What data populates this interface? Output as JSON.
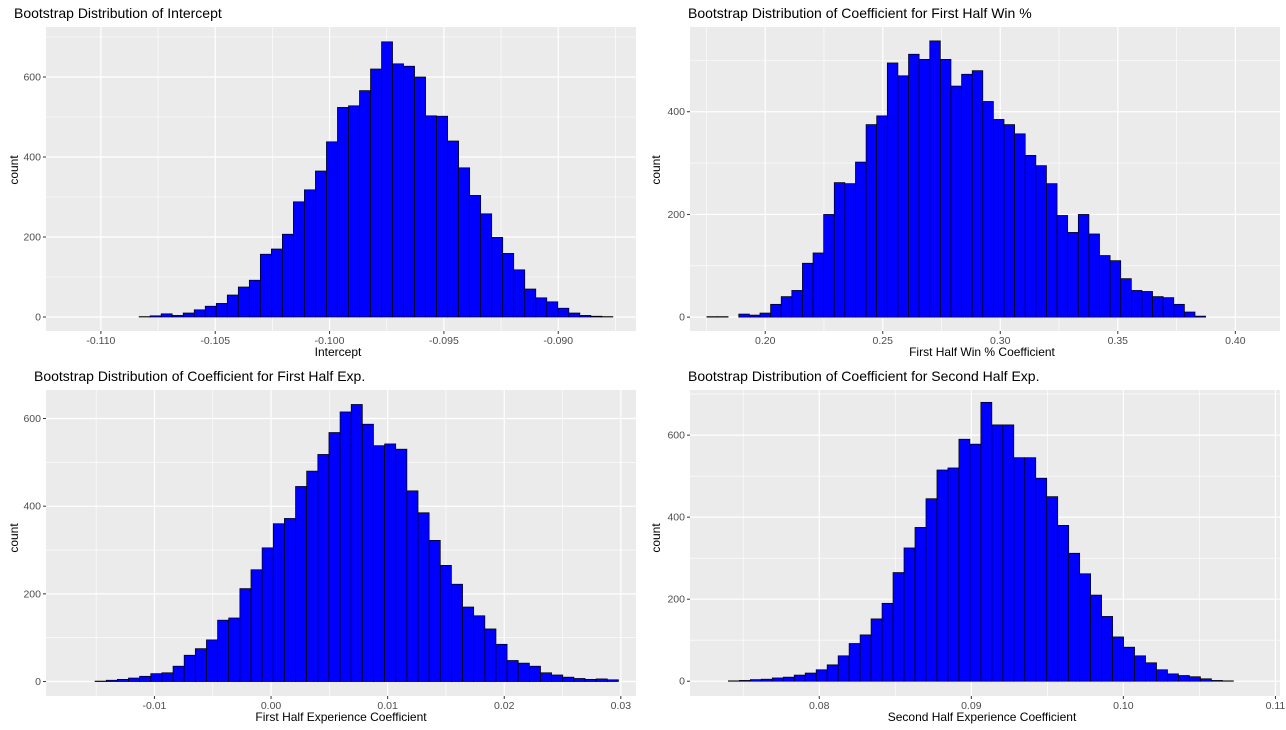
{
  "chart_data": [
    {
      "type": "histogram",
      "title": "Bootstrap Distribution of Intercept",
      "xlabel": "Intercept",
      "ylabel": "count",
      "xlim": [
        -0.1124,
        -0.0866
      ],
      "ylim": [
        -35,
        725
      ],
      "xticks": [
        -0.11,
        -0.105,
        -0.1,
        -0.095,
        -0.09
      ],
      "xtick_labels": [
        "-0.110",
        "-0.105",
        "-0.100",
        "-0.095",
        "-0.090"
      ],
      "yticks": [
        0,
        200,
        400,
        600
      ],
      "ytick_labels": [
        "0",
        "200",
        "400",
        "600"
      ],
      "grid": true,
      "bin_start": -0.1117,
      "bin_width": 0.0004818,
      "fill": "#0000ff",
      "edge": "#000000",
      "counts": [
        0,
        0,
        0,
        0,
        0,
        0,
        0,
        1,
        3,
        8,
        4,
        10,
        18,
        27,
        34,
        55,
        75,
        92,
        157,
        170,
        207,
        288,
        318,
        365,
        438,
        524,
        528,
        566,
        620,
        688,
        633,
        627,
        600,
        503,
        502,
        440,
        373,
        304,
        258,
        199,
        159,
        118,
        70,
        48,
        38,
        22,
        10,
        4,
        2,
        1,
        0,
        0,
        0,
        0
      ]
    },
    {
      "type": "histogram",
      "title": "Bootstrap Distribution of Coefficient for First Half Win %",
      "xlabel": "First Half Win % Coefficient",
      "ylabel": "count",
      "xlim": [
        0.168,
        0.419
      ],
      "ylim": [
        -27,
        565
      ],
      "xticks": [
        0.2,
        0.25,
        0.3,
        0.35,
        0.4
      ],
      "xtick_labels": [
        "0.20",
        "0.25",
        "0.30",
        "0.35",
        "0.40"
      ],
      "yticks": [
        0,
        200,
        400
      ],
      "ytick_labels": [
        "0",
        "200",
        "400"
      ],
      "grid": true,
      "bin_start": 0.1752,
      "bin_width": 0.004514,
      "fill": "#0000ff",
      "edge": "#000000",
      "counts": [
        1,
        1,
        0,
        6,
        4,
        8,
        25,
        40,
        52,
        105,
        125,
        200,
        262,
        260,
        302,
        375,
        392,
        495,
        470,
        512,
        502,
        538,
        502,
        450,
        473,
        480,
        420,
        385,
        375,
        357,
        315,
        295,
        260,
        198,
        165,
        200,
        162,
        120,
        110,
        75,
        52,
        50,
        40,
        38,
        25,
        10,
        2,
        0
      ]
    },
    {
      "type": "histogram",
      "title": "Bootstrap Distribution of Coefficient for First Half Exp.",
      "xlabel": "First Half Experience Coefficient",
      "ylabel": "count",
      "xlim": [
        -0.0193,
        0.0313
      ],
      "ylim": [
        -33,
        665
      ],
      "xticks": [
        -0.01,
        0.0,
        0.01,
        0.02,
        0.03
      ],
      "xtick_labels": [
        "-0.01",
        "0.00",
        "0.01",
        "0.02",
        "0.03"
      ],
      "yticks": [
        0,
        200,
        400,
        600
      ],
      "ytick_labels": [
        "0",
        "200",
        "400",
        "600"
      ],
      "grid": true,
      "bin_start": -0.017,
      "bin_width": 0.000955,
      "fill": "#0000ff",
      "edge": "#000000",
      "counts": [
        0,
        0,
        1,
        3,
        5,
        8,
        12,
        18,
        20,
        35,
        60,
        75,
        95,
        140,
        145,
        212,
        255,
        305,
        360,
        372,
        445,
        480,
        518,
        568,
        615,
        632,
        587,
        538,
        542,
        530,
        435,
        385,
        322,
        265,
        222,
        170,
        150,
        120,
        85,
        48,
        42,
        35,
        20,
        15,
        10,
        7,
        5,
        6,
        4,
        0
      ]
    },
    {
      "type": "histogram",
      "title": "Bootstrap Distribution of Coefficient for Second Half Exp.",
      "xlabel": "Second Half Experience Coefficient",
      "ylabel": "count",
      "xlim": [
        0.0715,
        0.1103
      ],
      "ylim": [
        -36,
        710
      ],
      "xticks": [
        0.08,
        0.09,
        0.1,
        0.11
      ],
      "xtick_labels": [
        "0.08",
        "0.09",
        "0.10",
        "0.11"
      ],
      "yticks": [
        0,
        200,
        400,
        600
      ],
      "ytick_labels": [
        "0",
        "200",
        "400",
        "600"
      ],
      "grid": true,
      "bin_start": 0.0733,
      "bin_width": 0.000722,
      "fill": "#0000ff",
      "edge": "#000000",
      "counts": [
        0,
        1,
        2,
        4,
        5,
        8,
        10,
        15,
        20,
        28,
        40,
        62,
        92,
        113,
        152,
        190,
        265,
        325,
        375,
        445,
        515,
        520,
        590,
        578,
        680,
        625,
        625,
        545,
        545,
        495,
        450,
        380,
        312,
        262,
        210,
        158,
        108,
        83,
        62,
        45,
        28,
        18,
        14,
        11,
        6,
        2,
        1,
        0,
        0,
        0,
        0,
        0,
        0
      ]
    }
  ]
}
